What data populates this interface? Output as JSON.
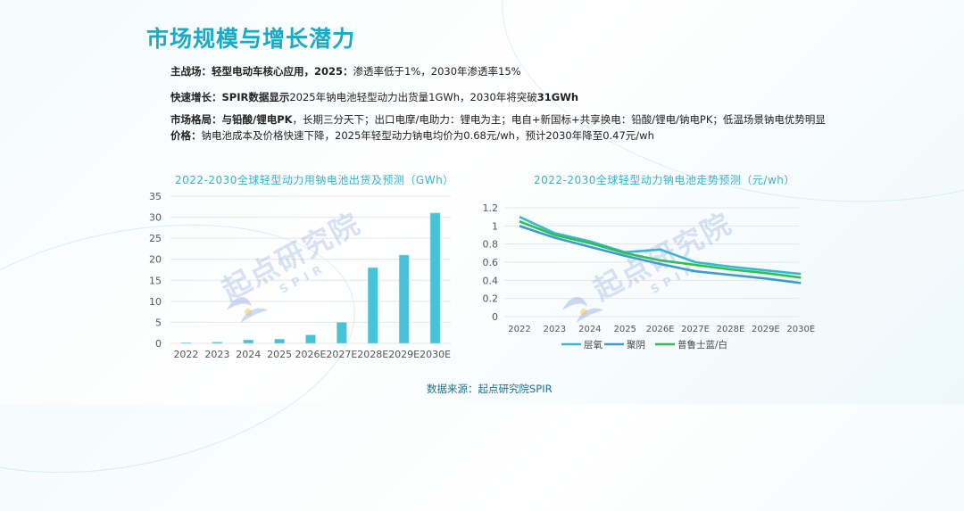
{
  "page": {
    "title": "市场规模与增长潜力",
    "bullets": [
      {
        "label": "主战场：",
        "strong": "轻型电动车核心应用，2025：",
        "text": "渗透率低于1%，2030年渗透率15%",
        "tail": ""
      },
      {
        "label": "快速增长：",
        "strong": "SPIR数据显示",
        "text": "2025年钠电池轻型动力出货量1GWh，2030年将突破",
        "tail": "31GWh"
      },
      {
        "label": "市场格局：",
        "strong": "与铅酸/锂电PK",
        "text": "，长期三分天下；出口电摩/电助力：锂电为主；电自+新国标+共享换电：铅酸/锂电/钠电PK；低温场景钠电优势明显",
        "tail": ""
      },
      {
        "label": "价格：",
        "strong": "",
        "text": "钠电池成本及价格快速下降，2025年轻型动力钠电均价为0.68元/wh，预计2030年降至0.47元/wh",
        "tail": ""
      }
    ],
    "source": "数据来源：起点研究院SPIR",
    "watermark": {
      "cn": "起点研究院",
      "en": "SPIR"
    },
    "colors": {
      "title": "#1ba9c6",
      "bar": "#46c3d8",
      "line1": "#35b9d3",
      "line2": "#3a9ccf",
      "line3": "#2fbf50"
    }
  },
  "chart_data": [
    {
      "type": "bar",
      "title": "2022-2030全球轻型动力用钠电池出货及预测（GWh）",
      "categories": [
        "2022",
        "2023",
        "2024",
        "2025",
        "2026E",
        "2027E",
        "2028E",
        "2029E",
        "2030E"
      ],
      "values": [
        0.05,
        0.3,
        0.8,
        1.0,
        2.0,
        5.0,
        18.0,
        21.0,
        31.0
      ],
      "ylim": [
        0,
        35
      ],
      "yticks": [
        "0",
        "5",
        "10",
        "15",
        "20",
        "25",
        "30",
        "35"
      ],
      "grid": true
    },
    {
      "type": "line",
      "title": "2022-2030全球轻型动力钠电池走势预测（元/wh）",
      "categories": [
        "2022",
        "2023",
        "2024",
        "2025",
        "2026E",
        "2027E",
        "2028E",
        "2029E",
        "2030E"
      ],
      "ylim": [
        0,
        1.2
      ],
      "yticks": [
        "0",
        "0.2",
        "0.4",
        "0.6",
        "0.8",
        "1",
        "1.2"
      ],
      "legend_position": "bottom",
      "series": [
        {
          "name": "层氧",
          "values": [
            1.1,
            0.92,
            0.83,
            0.71,
            0.74,
            0.6,
            0.55,
            0.51,
            0.47
          ]
        },
        {
          "name": "聚阴",
          "values": [
            1.0,
            0.87,
            0.77,
            0.67,
            0.58,
            0.5,
            0.46,
            0.42,
            0.37
          ]
        },
        {
          "name": "普鲁士蓝/白",
          "values": [
            1.05,
            0.9,
            0.81,
            0.7,
            0.62,
            0.57,
            0.52,
            0.48,
            0.43
          ]
        }
      ]
    }
  ]
}
